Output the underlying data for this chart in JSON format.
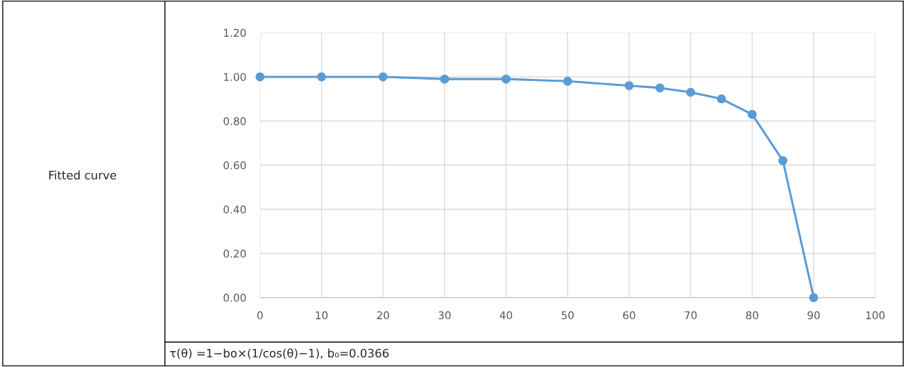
{
  "chart_data": {
    "type": "line",
    "x": [
      0,
      10,
      20,
      30,
      40,
      50,
      60,
      65,
      70,
      75,
      80,
      85,
      90
    ],
    "series": [
      {
        "color": "#5b9bd5",
        "values": [
          1.0,
          1.0,
          1.0,
          0.99,
          0.99,
          0.98,
          0.96,
          0.95,
          0.93,
          0.9,
          0.83,
          0.62,
          0.0
        ]
      }
    ],
    "xlim": [
      0,
      100
    ],
    "xticks": [
      0,
      10,
      20,
      30,
      40,
      50,
      60,
      70,
      80,
      90,
      100
    ],
    "ylim": [
      0,
      1.2
    ],
    "yticks": [
      {
        "value": 0,
        "label": "0.00"
      },
      {
        "value": 0.2,
        "label": "0.20"
      },
      {
        "value": 0.4,
        "label": "0.40"
      },
      {
        "value": 0.6,
        "label": "0.60"
      },
      {
        "value": 0.8,
        "label": "0.80"
      },
      {
        "value": 1.0,
        "label": "1.00"
      },
      {
        "value": 1.2,
        "label": "1.20"
      }
    ],
    "grid": true,
    "marker": "circle",
    "line_style": "solid",
    "annotations": [
      "Fitted curve",
      "τ(θ) =1−bo×(1/cos(θ)−1), b₀=0.0366"
    ]
  }
}
